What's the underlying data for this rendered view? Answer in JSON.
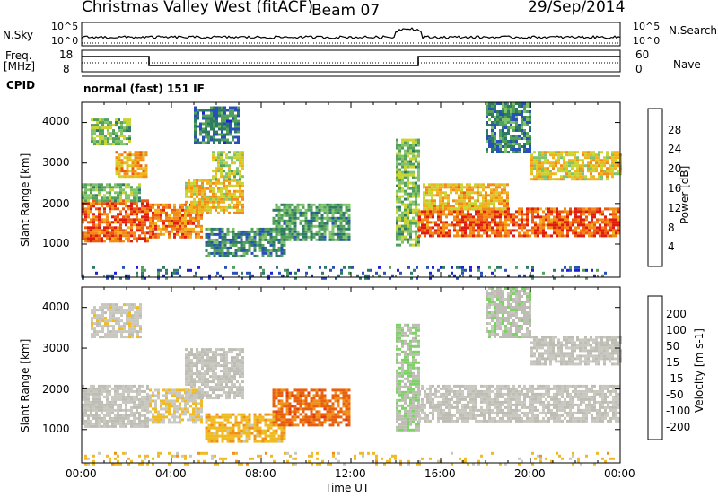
{
  "header": {
    "title": "Christmas Valley West (fitACF)",
    "beam": "Beam 07",
    "date": "29/Sep/2014"
  },
  "params": {
    "nsky_label": "N.Sky",
    "nsky_ticks": [
      "10^5",
      "10^0"
    ],
    "nsearch_label": "N.Search",
    "nsearch_ticks": [
      "10^5",
      "10^0"
    ],
    "freq_label": "Freq.",
    "freq_unit": "[MHz]",
    "freq_ticks": [
      "18",
      "8"
    ],
    "nave_label": "Nave",
    "nave_ticks": [
      "60",
      "0"
    ],
    "cpid_label": "CPID",
    "cpid_value": "normal (fast) 151 IF"
  },
  "colors": {
    "power_scale": [
      "#1f1fd6",
      "#2850b8",
      "#2e7a64",
      "#52a05a",
      "#7fc46a",
      "#c9d430",
      "#f2b31a",
      "#f28c16",
      "#ec5a0f",
      "#e01b0f"
    ],
    "velocity_scale": [
      "#2233cc",
      "#2c5aa8",
      "#2d7f62",
      "#4db04a",
      "#7ed067",
      "#bdbdb4",
      "#c8c8c0",
      "#f0bb22",
      "#f0901a",
      "#e8600f",
      "#e03a0f",
      "#dc1a0f"
    ]
  },
  "chart_data": [
    {
      "type": "heatmap",
      "name": "power-panel",
      "ylabel": "Slant Range [km]",
      "xlabel": "Time UT",
      "colorbar_label": "Power [dB]",
      "colorbar_ticks": [
        "28",
        "24",
        "20",
        "16",
        "12",
        "8",
        "4"
      ],
      "yticks": [
        "4000",
        "3000",
        "2000",
        "1000"
      ],
      "xticks": [
        "00:00",
        "04:00",
        "08:00",
        "12:00",
        "16:00",
        "20:00",
        "00:00"
      ],
      "x_range_hours": [
        0,
        24
      ],
      "y_range_km": [
        180,
        4500
      ],
      "z_range_db": [
        0,
        32
      ],
      "regions": [
        {
          "t": [
            0.0,
            3.0
          ],
          "r": [
            1100,
            2100
          ],
          "p": 27
        },
        {
          "t": [
            0.0,
            2.6
          ],
          "r": [
            2100,
            2500
          ],
          "p": 14
        },
        {
          "t": [
            0.4,
            2.2
          ],
          "r": [
            3500,
            4100
          ],
          "p": 14
        },
        {
          "t": [
            1.5,
            2.9
          ],
          "r": [
            2700,
            3300
          ],
          "p": 22
        },
        {
          "t": [
            3.0,
            5.4
          ],
          "r": [
            1150,
            2000
          ],
          "p": 25
        },
        {
          "t": [
            4.6,
            7.2
          ],
          "r": [
            1800,
            2600
          ],
          "p": 20
        },
        {
          "t": [
            5.8,
            7.2
          ],
          "r": [
            2600,
            3300
          ],
          "p": 16
        },
        {
          "t": [
            5.0,
            7.0
          ],
          "r": [
            3500,
            4400
          ],
          "p": 8
        },
        {
          "t": [
            5.5,
            9.0
          ],
          "r": [
            700,
            1400
          ],
          "p": 9
        },
        {
          "t": [
            8.5,
            11.9
          ],
          "r": [
            1100,
            2000
          ],
          "p": 11
        },
        {
          "t": [
            14.0,
            15.0
          ],
          "r": [
            1000,
            3600
          ],
          "p": 14
        },
        {
          "t": [
            15.0,
            24.0
          ],
          "r": [
            1200,
            1900
          ],
          "p": 27
        },
        {
          "t": [
            15.2,
            19.0
          ],
          "r": [
            1900,
            2500
          ],
          "p": 21
        },
        {
          "t": [
            20.0,
            24.0
          ],
          "r": [
            2600,
            3300
          ],
          "p": 19
        },
        {
          "t": [
            18.0,
            20.0
          ],
          "r": [
            3300,
            4500
          ],
          "p": 9
        },
        {
          "t": [
            0.0,
            24.0
          ],
          "r": [
            180,
            450
          ],
          "p": 6
        }
      ]
    },
    {
      "type": "heatmap",
      "name": "velocity-panel",
      "ylabel": "Slant Range [km]",
      "xlabel": "Time UT",
      "colorbar_label": "Velocity [m s-1]",
      "colorbar_ticks": [
        "200",
        "100",
        "50",
        "15",
        "-15",
        "-50",
        "-100",
        "-200"
      ],
      "yticks": [
        "4000",
        "3000",
        "2000",
        "1000"
      ],
      "xticks": [
        "00:00",
        "04:00",
        "08:00",
        "12:00",
        "16:00",
        "20:00",
        "00:00"
      ],
      "x_range_hours": [
        0,
        24
      ],
      "y_range_km": [
        180,
        4500
      ],
      "v_range": [
        -250,
        250
      ],
      "regions": [
        {
          "t": [
            0.0,
            3.0
          ],
          "r": [
            1100,
            2100
          ],
          "v": 0
        },
        {
          "t": [
            0.4,
            2.6
          ],
          "r": [
            3300,
            4100
          ],
          "v": -20
        },
        {
          "t": [
            3.0,
            5.4
          ],
          "r": [
            1150,
            2000
          ],
          "v": -40
        },
        {
          "t": [
            4.6,
            7.2
          ],
          "r": [
            1800,
            3000
          ],
          "v": 0
        },
        {
          "t": [
            5.5,
            9.0
          ],
          "r": [
            700,
            1400
          ],
          "v": -70
        },
        {
          "t": [
            8.5,
            11.9
          ],
          "r": [
            1100,
            2000
          ],
          "v": -140
        },
        {
          "t": [
            14.0,
            15.0
          ],
          "r": [
            1000,
            3600
          ],
          "v": 40
        },
        {
          "t": [
            15.0,
            24.0
          ],
          "r": [
            1200,
            2100
          ],
          "v": 0
        },
        {
          "t": [
            20.0,
            24.0
          ],
          "r": [
            2600,
            3300
          ],
          "v": 0
        },
        {
          "t": [
            18.0,
            20.0
          ],
          "r": [
            3300,
            4500
          ],
          "v": 20
        },
        {
          "t": [
            0.0,
            24.0
          ],
          "r": [
            180,
            450
          ],
          "v": -60
        }
      ]
    }
  ]
}
